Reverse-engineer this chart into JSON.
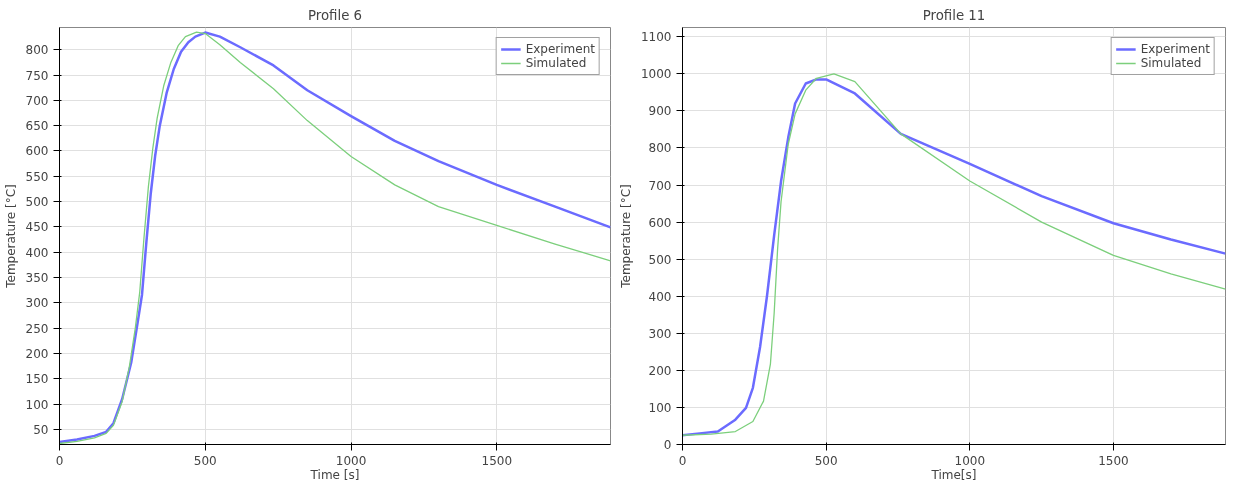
{
  "chart_data": [
    {
      "type": "line",
      "title": "Profile 6",
      "xlabel": "Time [s]",
      "ylabel": "Temperature [°C]",
      "xlim": [
        0,
        1890
      ],
      "ylim": [
        20,
        844
      ],
      "xticks": [
        0,
        500,
        1000,
        1500
      ],
      "yticks": [
        50,
        100,
        150,
        200,
        250,
        300,
        350,
        400,
        450,
        500,
        550,
        600,
        650,
        700,
        750,
        800
      ],
      "grid": true,
      "legend": "top right",
      "series": [
        {
          "name": "Experiment",
          "color": "#6b6bff",
          "x": [
            0,
            60,
            120,
            160,
            185,
            215,
            246,
            265,
            283,
            298,
            313,
            328,
            344,
            368,
            392,
            417,
            442,
            466,
            500,
            550,
            620,
            734,
            850,
            1000,
            1150,
            1300,
            1500,
            1700,
            1890
          ],
          "values": [
            25,
            30,
            37,
            45,
            62,
            110,
            182,
            250,
            316,
            420,
            516,
            590,
            650,
            716,
            762,
            796,
            815,
            826,
            834,
            826,
            805,
            769,
            720,
            669,
            620,
            580,
            533,
            490,
            449
          ]
        },
        {
          "name": "Simulated",
          "color": "#7ccf7c",
          "x": [
            0,
            60,
            120,
            160,
            185,
            215,
            240,
            260,
            275,
            290,
            305,
            320,
            335,
            358,
            382,
            407,
            432,
            470,
            500,
            550,
            620,
            734,
            850,
            1000,
            1150,
            1300,
            1500,
            1700,
            1890
          ],
          "values": [
            22,
            26,
            33,
            42,
            58,
            105,
            175,
            250,
            320,
            430,
            530,
            605,
            665,
            730,
            775,
            808,
            826,
            835,
            832,
            810,
            775,
            723,
            660,
            589,
            533,
            490,
            453,
            416,
            383
          ]
        }
      ]
    },
    {
      "type": "line",
      "title": "Profile 11",
      "xlabel": "Time[s]",
      "ylabel": "Temperature [°C]",
      "xlim": [
        0,
        1890
      ],
      "ylim": [
        0,
        1125
      ],
      "xticks": [
        0,
        500,
        1000,
        1500
      ],
      "yticks": [
        0,
        100,
        200,
        300,
        400,
        500,
        600,
        700,
        800,
        900,
        1000,
        1100
      ],
      "grid": true,
      "legend": "top right",
      "series": [
        {
          "name": "Experiment",
          "color": "#6b6bff",
          "x": [
            0,
            60,
            123,
            184,
            221,
            245,
            270,
            294,
            319,
            343,
            368,
            392,
            429,
            466,
            500,
            600,
            760,
            1000,
            1250,
            1500,
            1700,
            1890
          ],
          "values": [
            25,
            30,
            35,
            67,
            99,
            153,
            263,
            400,
            564,
            710,
            828,
            920,
            974,
            985,
            985,
            947,
            838,
            757,
            670,
            597,
            553,
            515
          ]
        },
        {
          "name": "Simulated",
          "color": "#7ccf7c",
          "x": [
            0,
            100,
            184,
            245,
            282,
            306,
            319,
            331,
            343,
            368,
            392,
            429,
            466,
            527,
            600,
            760,
            1000,
            1250,
            1500,
            1700,
            1890
          ],
          "values": [
            25,
            28,
            35,
            62,
            117,
            217,
            354,
            527,
            655,
            810,
            892,
            956,
            988,
            1000,
            979,
            838,
            711,
            600,
            510,
            460,
            419
          ]
        }
      ]
    }
  ]
}
